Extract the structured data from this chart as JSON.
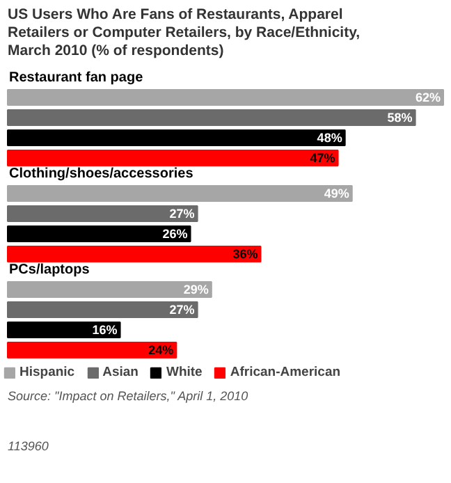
{
  "chart_data": {
    "type": "bar",
    "orientation": "horizontal",
    "title": "US Users Who Are Fans of Restaurants, Apparel Retailers or Computer Retailers, by Race/Ethnicity, March 2010 (% of respondents)",
    "categories": [
      "Restaurant fan page",
      "Clothing/shoes/accessories",
      "PCs/laptops"
    ],
    "series": [
      {
        "name": "Hispanic",
        "color": "#a6a6a6",
        "values": [
          62,
          49,
          29
        ],
        "value_labels": [
          "62%",
          "49%",
          "29%"
        ]
      },
      {
        "name": "Asian",
        "color": "#6b6b6b",
        "values": [
          58,
          27,
          27
        ],
        "value_labels": [
          "58%",
          "27%",
          "27%"
        ]
      },
      {
        "name": "White",
        "color": "#000000",
        "values": [
          48,
          26,
          16
        ],
        "value_labels": [
          "48%",
          "26%",
          "16%"
        ]
      },
      {
        "name": "African-American",
        "color": "#ff0000",
        "values": [
          47,
          36,
          24
        ],
        "value_labels": [
          "47%",
          "36%",
          "24%"
        ]
      }
    ],
    "legend": "bottom",
    "grid": false,
    "annotations": [
      "Source: \"Impact on Retailers,\" April 1, 2010",
      "113960"
    ]
  }
}
